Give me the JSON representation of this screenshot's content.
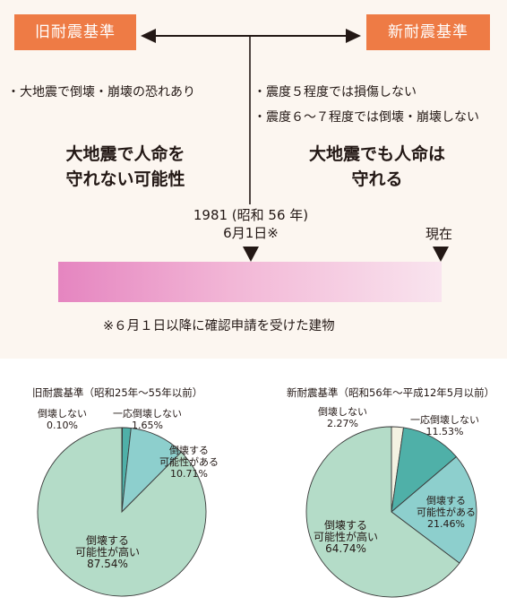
{
  "timeline": {
    "old_label": "旧耐震基準",
    "new_label": "新耐震基準",
    "old_note": "・大地震で倒壊・崩壊の恐れあり",
    "new_note_1": "・震度５程度では損傷しない",
    "new_note_2": "・震度６～７程度では倒壊・崩壊しない",
    "old_summary_1": "大地震で人命を",
    "old_summary_2": "守れない可能性",
    "new_summary_1": "大地震でも人命は",
    "new_summary_2": "守れる",
    "date_line_1": "1981 (昭和 56 年)",
    "date_line_2": "6月1日※",
    "now_label": "現在",
    "footnote": "※６月１日以降に確認申請を受けた建物"
  },
  "colors": {
    "badge": "#ee7b45",
    "panel_bg": "#fcf6f0",
    "gradient_start": "#e585c0",
    "gradient_end": "#f9e4ee",
    "slice_high": "#b4dcc8",
    "slice_possible": "#8dcfcd",
    "slice_minimal": "#4fb0a8",
    "slice_none": "#f4f2e2"
  },
  "chart_data": [
    {
      "type": "pie",
      "title": "旧耐震基準（昭和25年～55年以前）",
      "slices": [
        {
          "label_1": "倒壊しない",
          "label_2": "",
          "value": 0.1,
          "value_text": "0.10%",
          "color": "#f4f2e2"
        },
        {
          "label_1": "一応倒壊しない",
          "label_2": "",
          "value": 1.65,
          "value_text": "1.65%",
          "color": "#4fb0a8"
        },
        {
          "label_1": "倒壊する",
          "label_2": "可能性がある",
          "value": 10.71,
          "value_text": "10.71%",
          "color": "#8dcfcd"
        },
        {
          "label_1": "倒壊する",
          "label_2": "可能性が高い",
          "value": 87.54,
          "value_text": "87.54%",
          "color": "#b4dcc8"
        }
      ]
    },
    {
      "type": "pie",
      "title": "新耐震基準（昭和56年～平成12年5月以前）",
      "slices": [
        {
          "label_1": "倒壊しない",
          "label_2": "",
          "value": 2.27,
          "value_text": "2.27%",
          "color": "#f4f2e2"
        },
        {
          "label_1": "一応倒壊しない",
          "label_2": "",
          "value": 11.53,
          "value_text": "11.53%",
          "color": "#4fb0a8"
        },
        {
          "label_1": "倒壊する",
          "label_2": "可能性がある",
          "value": 21.46,
          "value_text": "21.46%",
          "color": "#8dcfcd"
        },
        {
          "label_1": "倒壊する",
          "label_2": "可能性が高い",
          "value": 64.74,
          "value_text": "64.74%",
          "color": "#b4dcc8"
        }
      ]
    }
  ]
}
